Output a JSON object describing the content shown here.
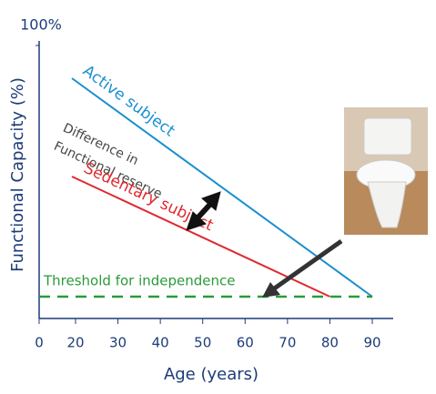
{
  "chart_data": {
    "type": "line",
    "xlabel": "Age (years)",
    "ylabel": "Functional Capacity (%)",
    "xlim": [
      0,
      90
    ],
    "xticks": [
      0,
      20,
      30,
      40,
      50,
      60,
      70,
      80,
      90
    ],
    "ylim": [
      0,
      100
    ],
    "yticks": [
      {
        "value": 100,
        "label": "100%"
      }
    ],
    "series": [
      {
        "name": "Active subject",
        "color": "#1a8fd0",
        "x": [
          18,
          90
        ],
        "values": [
          88,
          8
        ]
      },
      {
        "name": "Sedentary subject",
        "color": "#e0282e",
        "x": [
          18,
          80
        ],
        "values": [
          52,
          8
        ]
      },
      {
        "name": "Threshold for independence",
        "color": "#2a9a3a",
        "dashed": true,
        "x": [
          0,
          90
        ],
        "values": [
          8,
          8
        ]
      }
    ],
    "annotations": [
      "Difference in",
      "Functional reserve"
    ]
  }
}
